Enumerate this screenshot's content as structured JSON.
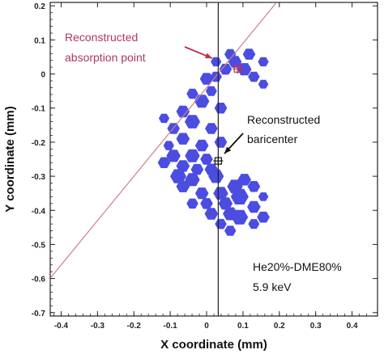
{
  "chart_data": {
    "type": "scatter",
    "xlabel": "X coordinate (mm)",
    "ylabel": "Y coordinate (mm)",
    "xlim": [
      -0.43,
      0.47
    ],
    "ylim": [
      -0.71,
      0.21
    ],
    "x_ticks": [
      -0.4,
      -0.3,
      -0.2,
      -0.1,
      0,
      0.1,
      0.2,
      0.3,
      0.4
    ],
    "x_tick_labels": [
      "-0.4",
      "-0.3",
      "-0.2",
      "-0.1",
      "0",
      "0.1",
      "0.2",
      "0.3",
      "0.4"
    ],
    "y_ticks": [
      0.2,
      0.1,
      0,
      -0.1,
      -0.2,
      -0.3,
      -0.4,
      -0.5,
      -0.6,
      -0.7
    ],
    "y_tick_labels": [
      "0.2",
      "0.1",
      "0",
      "-0.1",
      "-0.2",
      "-0.3",
      "-0.4",
      "-0.5",
      "-0.6",
      "-0.7"
    ],
    "grid": false,
    "pixel_hits": [
      {
        "x": 0.065,
        "y": 0.058,
        "charge": 0.4
      },
      {
        "x": 0.117,
        "y": 0.058,
        "charge": 0.5
      },
      {
        "x": 0.026,
        "y": 0.036,
        "charge": 0.3
      },
      {
        "x": 0.078,
        "y": 0.036,
        "charge": 0.6
      },
      {
        "x": 0.156,
        "y": 0.036,
        "charge": 0.3
      },
      {
        "x": 0.052,
        "y": 0.014,
        "charge": 0.5
      },
      {
        "x": 0.104,
        "y": 0.014,
        "charge": 0.7
      },
      {
        "x": 0.026,
        "y": -0.008,
        "charge": 0.4
      },
      {
        "x": 0.13,
        "y": -0.008,
        "charge": 0.4
      },
      {
        "x": 0.0,
        "y": -0.014,
        "charge": 0.6
      },
      {
        "x": 0.156,
        "y": -0.03,
        "charge": 0.25
      },
      {
        "x": -0.039,
        "y": -0.058,
        "charge": 0.4
      },
      {
        "x": 0.013,
        "y": -0.05,
        "charge": 0.35
      },
      {
        "x": -0.013,
        "y": -0.08,
        "charge": 0.8
      },
      {
        "x": -0.065,
        "y": -0.11,
        "charge": 0.6
      },
      {
        "x": 0.039,
        "y": -0.1,
        "charge": 0.5
      },
      {
        "x": -0.117,
        "y": -0.13,
        "charge": 0.3
      },
      {
        "x": -0.039,
        "y": -0.14,
        "charge": 0.9
      },
      {
        "x": -0.091,
        "y": -0.16,
        "charge": 0.5
      },
      {
        "x": 0.013,
        "y": -0.16,
        "charge": 0.5
      },
      {
        "x": -0.065,
        "y": -0.19,
        "charge": 0.6
      },
      {
        "x": 0.039,
        "y": -0.2,
        "charge": 0.5
      },
      {
        "x": -0.104,
        "y": -0.21,
        "charge": 0.3
      },
      {
        "x": -0.013,
        "y": -0.21,
        "charge": 0.6
      },
      {
        "x": 0.0,
        "y": -0.25,
        "charge": 0.5
      },
      {
        "x": -0.039,
        "y": -0.24,
        "charge": 0.8
      },
      {
        "x": -0.091,
        "y": -0.24,
        "charge": 0.7
      },
      {
        "x": -0.117,
        "y": -0.26,
        "charge": 0.5
      },
      {
        "x": -0.065,
        "y": -0.27,
        "charge": 0.6
      },
      {
        "x": -0.026,
        "y": -0.28,
        "charge": 0.5
      },
      {
        "x": 0.013,
        "y": -0.28,
        "charge": 0.6
      },
      {
        "x": -0.078,
        "y": -0.3,
        "charge": 1.0
      },
      {
        "x": 0.026,
        "y": -0.3,
        "charge": 0.9
      },
      {
        "x": -0.039,
        "y": -0.31,
        "charge": 0.8
      },
      {
        "x": 0.104,
        "y": -0.31,
        "charge": 0.6
      },
      {
        "x": -0.065,
        "y": -0.33,
        "charge": 0.6
      },
      {
        "x": 0.078,
        "y": -0.33,
        "charge": 0.9
      },
      {
        "x": 0.13,
        "y": -0.33,
        "charge": 0.5
      },
      {
        "x": -0.013,
        "y": -0.35,
        "charge": 0.6
      },
      {
        "x": 0.039,
        "y": -0.35,
        "charge": 0.8
      },
      {
        "x": 0.091,
        "y": -0.36,
        "charge": 1.3
      },
      {
        "x": 0.156,
        "y": -0.36,
        "charge": 0.25
      },
      {
        "x": -0.039,
        "y": -0.38,
        "charge": 0.4
      },
      {
        "x": 0.0,
        "y": -0.38,
        "charge": 0.5
      },
      {
        "x": 0.052,
        "y": -0.38,
        "charge": 0.7
      },
      {
        "x": 0.13,
        "y": -0.39,
        "charge": 0.6
      },
      {
        "x": 0.013,
        "y": -0.41,
        "charge": 0.6
      },
      {
        "x": 0.065,
        "y": -0.41,
        "charge": 0.8
      },
      {
        "x": 0.091,
        "y": -0.42,
        "charge": 1.1
      },
      {
        "x": 0.156,
        "y": -0.42,
        "charge": 0.5
      },
      {
        "x": 0.039,
        "y": -0.44,
        "charge": 0.4
      },
      {
        "x": 0.13,
        "y": -0.44,
        "charge": 0.35
      },
      {
        "x": 0.065,
        "y": -0.46,
        "charge": 0.4
      }
    ],
    "reconstructed_absorption_point": {
      "x": 0.085,
      "y": 0.015
    },
    "reconstructed_baricenter": {
      "x": 0.032,
      "y": -0.255
    },
    "baricenter_line_x": 0.032,
    "track_line": {
      "slope": 1.3,
      "intercept": -0.04
    },
    "colors": {
      "hits": "#4b4de0",
      "track": "#c9808f",
      "absorption_marker": "#c0304a",
      "vertical_line": "#222222"
    },
    "annotations": [
      {
        "id": "absorption",
        "lines": [
          "Reconstructed",
          "absorption point"
        ],
        "color": "#b0385a"
      },
      {
        "id": "baricenter",
        "lines": [
          "Reconstructed",
          "baricenter"
        ],
        "color": "#111111"
      },
      {
        "id": "gas",
        "lines": [
          "He20%-DME80%",
          "5.9 keV"
        ],
        "color": "#111111"
      }
    ]
  }
}
